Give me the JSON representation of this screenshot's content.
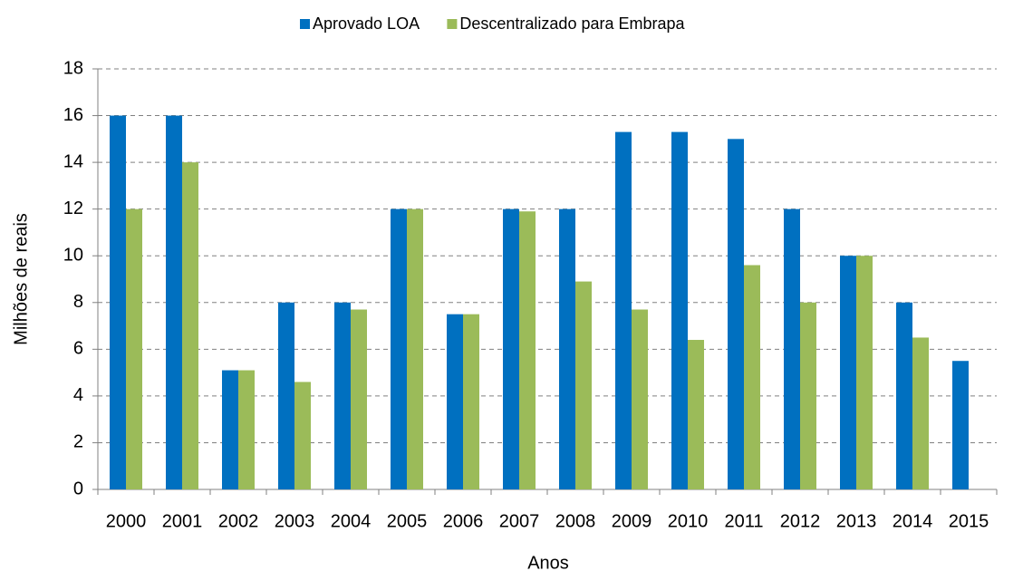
{
  "chart_data": {
    "type": "bar",
    "x_label": "Anos",
    "y_label": "Milhões de reais",
    "categories": [
      "2000",
      "2001",
      "2002",
      "2003",
      "2004",
      "2005",
      "2006",
      "2007",
      "2008",
      "2009",
      "2010",
      "2011",
      "2012",
      "2013",
      "2014",
      "2015"
    ],
    "series": [
      {
        "name": "Aprovado LOA",
        "color": "#0070c0",
        "values": [
          16,
          16,
          5.1,
          8,
          8,
          12,
          7.5,
          12,
          12,
          15.3,
          15.3,
          15,
          12,
          10,
          8,
          5.5
        ]
      },
      {
        "name": "Descentralizado para Embrapa",
        "color": "#9bbb59",
        "values": [
          12,
          14,
          5.1,
          4.6,
          7.7,
          12,
          7.5,
          11.9,
          8.9,
          7.7,
          6.4,
          9.6,
          8,
          10,
          6.5,
          null
        ]
      }
    ],
    "ylim": [
      0,
      18
    ],
    "yticks": [
      0,
      2,
      4,
      6,
      8,
      10,
      12,
      14,
      16,
      18
    ],
    "grid": true,
    "legend": "top"
  }
}
